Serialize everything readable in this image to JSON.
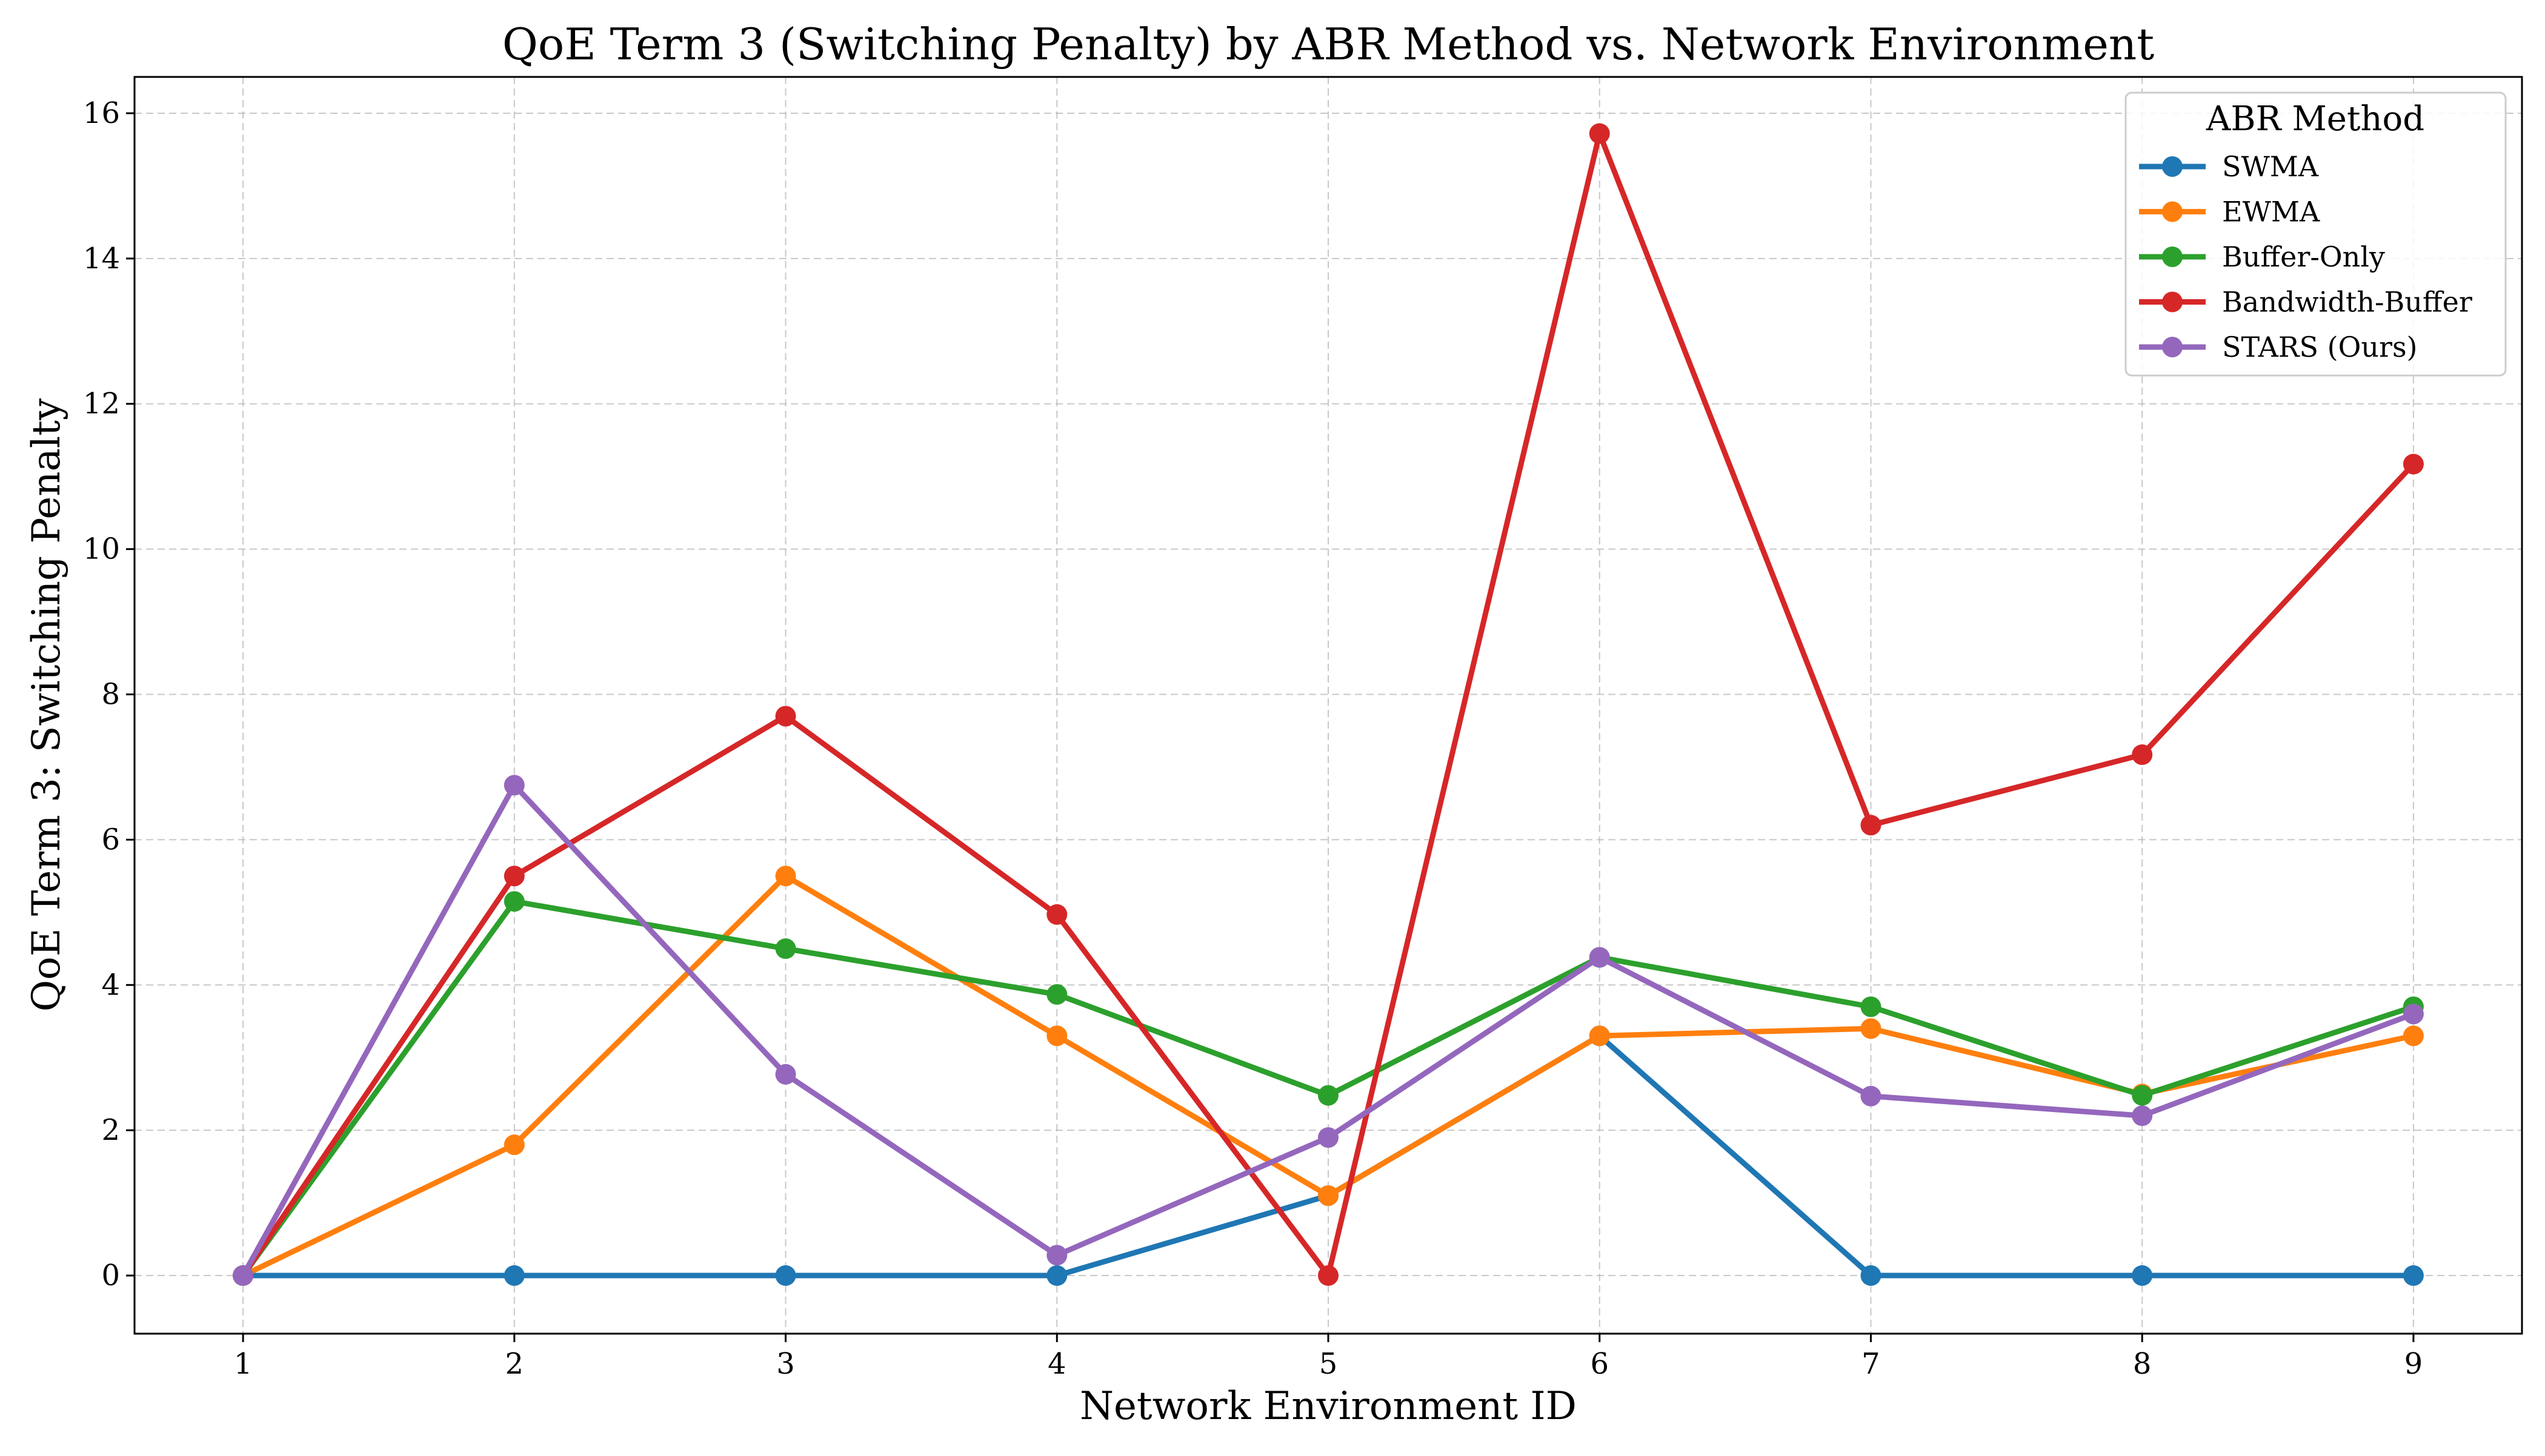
{
  "chart_data": {
    "type": "line",
    "title": "QoE Term 3 (Switching Penalty) by ABR Method vs. Network Environment",
    "xlabel": "Network Environment ID",
    "ylabel": "QoE Term 3: Switching Penalty",
    "x": [
      1,
      2,
      3,
      4,
      5,
      6,
      7,
      8,
      9
    ],
    "xlim": [
      0.6,
      9.4
    ],
    "ylim": [
      -0.8,
      16.5
    ],
    "yticks": [
      0,
      2,
      4,
      6,
      8,
      10,
      12,
      14,
      16
    ],
    "grid": true,
    "grid_style": "dashed",
    "legend": {
      "title": "ABR Method",
      "placement": "top-right"
    },
    "series": [
      {
        "name": "SWMA",
        "color": "#1f77b4",
        "values": [
          0,
          0,
          0,
          0,
          1.1,
          3.3,
          0,
          0,
          0
        ]
      },
      {
        "name": "EWMA",
        "color": "#ff7f0e",
        "values": [
          0,
          1.8,
          5.5,
          3.3,
          1.1,
          3.3,
          3.4,
          2.5,
          3.3
        ]
      },
      {
        "name": "Buffer-Only",
        "color": "#2ca02c",
        "values": [
          0,
          5.15,
          4.5,
          3.87,
          2.48,
          4.38,
          3.7,
          2.48,
          3.7
        ]
      },
      {
        "name": "Bandwidth-Buffer",
        "color": "#d62728",
        "values": [
          0,
          5.5,
          7.7,
          4.97,
          0,
          15.72,
          6.2,
          7.17,
          11.17
        ]
      },
      {
        "name": "STARS (Ours)",
        "color": "#9467bd",
        "values": [
          0,
          6.75,
          2.77,
          0.28,
          1.9,
          4.38,
          2.47,
          2.2,
          3.6
        ]
      }
    ]
  }
}
